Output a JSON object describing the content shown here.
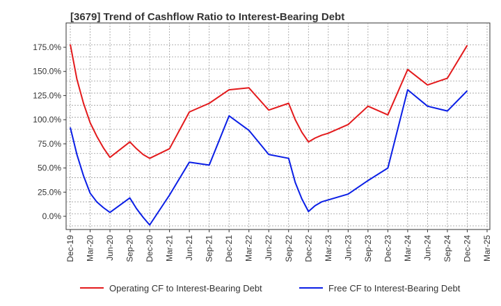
{
  "chart_data": {
    "type": "line",
    "title": "[3679]  Trend of Cashflow Ratio to Interest-Bearing Debt",
    "xlabel": "",
    "ylabel": "",
    "ylim": [
      -10,
      185
    ],
    "yticks": [
      0,
      25,
      50,
      75,
      100,
      125,
      150,
      175
    ],
    "ytick_labels": [
      "0.0%",
      "25.0%",
      "50.0%",
      "75.0%",
      "100.0%",
      "125.0%",
      "150.0%",
      "175.0%"
    ],
    "xtick_labels": [
      "Dec-19",
      "Mar-20",
      "Jun-20",
      "Sep-20",
      "Dec-20",
      "Mar-21",
      "Jun-21",
      "Sep-21",
      "Dec-21",
      "Mar-22",
      "Jun-22",
      "Sep-22",
      "Dec-22",
      "Mar-23",
      "Jun-23",
      "Sep-23",
      "Dec-23",
      "Mar-24",
      "Jun-24",
      "Sep-24",
      "Dec-24",
      "Mar-25"
    ],
    "grid": true,
    "legend_position": "bottom",
    "series": [
      {
        "name": "Operating CF to Interest-Bearing Debt",
        "color": "#e31a1c",
        "points": [
          [
            "Dec-19",
            178
          ],
          [
            "Jan-20",
            142
          ],
          [
            "Feb-20",
            117
          ],
          [
            "Mar-20",
            97
          ],
          [
            "Apr-20",
            83
          ],
          [
            "May-20",
            71
          ],
          [
            "Jun-20",
            61
          ],
          [
            "Sep-20",
            77
          ],
          [
            "Oct-20",
            70
          ],
          [
            "Nov-20",
            64
          ],
          [
            "Dec-20",
            60
          ],
          [
            "Mar-21",
            70
          ],
          [
            "Jun-21",
            108
          ],
          [
            "Sep-21",
            117
          ],
          [
            "Dec-21",
            131
          ],
          [
            "Mar-22",
            133
          ],
          [
            "Jun-22",
            110
          ],
          [
            "Sep-22",
            117
          ],
          [
            "Oct-22",
            100
          ],
          [
            "Nov-22",
            87
          ],
          [
            "Dec-22",
            77
          ],
          [
            "Jan-23",
            81
          ],
          [
            "Feb-23",
            84
          ],
          [
            "Mar-23",
            86
          ],
          [
            "Jun-23",
            95
          ],
          [
            "Sep-23",
            114
          ],
          [
            "Dec-23",
            105
          ],
          [
            "Mar-24",
            152
          ],
          [
            "Jun-24",
            136
          ],
          [
            "Sep-24",
            143
          ],
          [
            "Dec-24",
            177
          ]
        ]
      },
      {
        "name": "Free CF to Interest-Bearing Debt",
        "color": "#0a1ee6",
        "points": [
          [
            "Dec-19",
            92
          ],
          [
            "Jan-20",
            64
          ],
          [
            "Feb-20",
            42
          ],
          [
            "Mar-20",
            24
          ],
          [
            "Apr-20",
            15
          ],
          [
            "May-20",
            9
          ],
          [
            "Jun-20",
            4
          ],
          [
            "Sep-20",
            19
          ],
          [
            "Oct-20",
            8
          ],
          [
            "Nov-20",
            -1
          ],
          [
            "Dec-20",
            -9
          ],
          [
            "Mar-21",
            22
          ],
          [
            "Jun-21",
            56
          ],
          [
            "Sep-21",
            53
          ],
          [
            "Dec-21",
            104
          ],
          [
            "Mar-22",
            89
          ],
          [
            "Jun-22",
            64
          ],
          [
            "Sep-22",
            60
          ],
          [
            "Oct-22",
            35
          ],
          [
            "Nov-22",
            18
          ],
          [
            "Dec-22",
            5
          ],
          [
            "Jan-23",
            11
          ],
          [
            "Feb-23",
            15
          ],
          [
            "Mar-23",
            17
          ],
          [
            "Jun-23",
            23
          ],
          [
            "Sep-23",
            37
          ],
          [
            "Dec-23",
            50
          ],
          [
            "Mar-24",
            131
          ],
          [
            "Jun-24",
            114
          ],
          [
            "Sep-24",
            109
          ],
          [
            "Dec-24",
            130
          ]
        ]
      }
    ]
  }
}
